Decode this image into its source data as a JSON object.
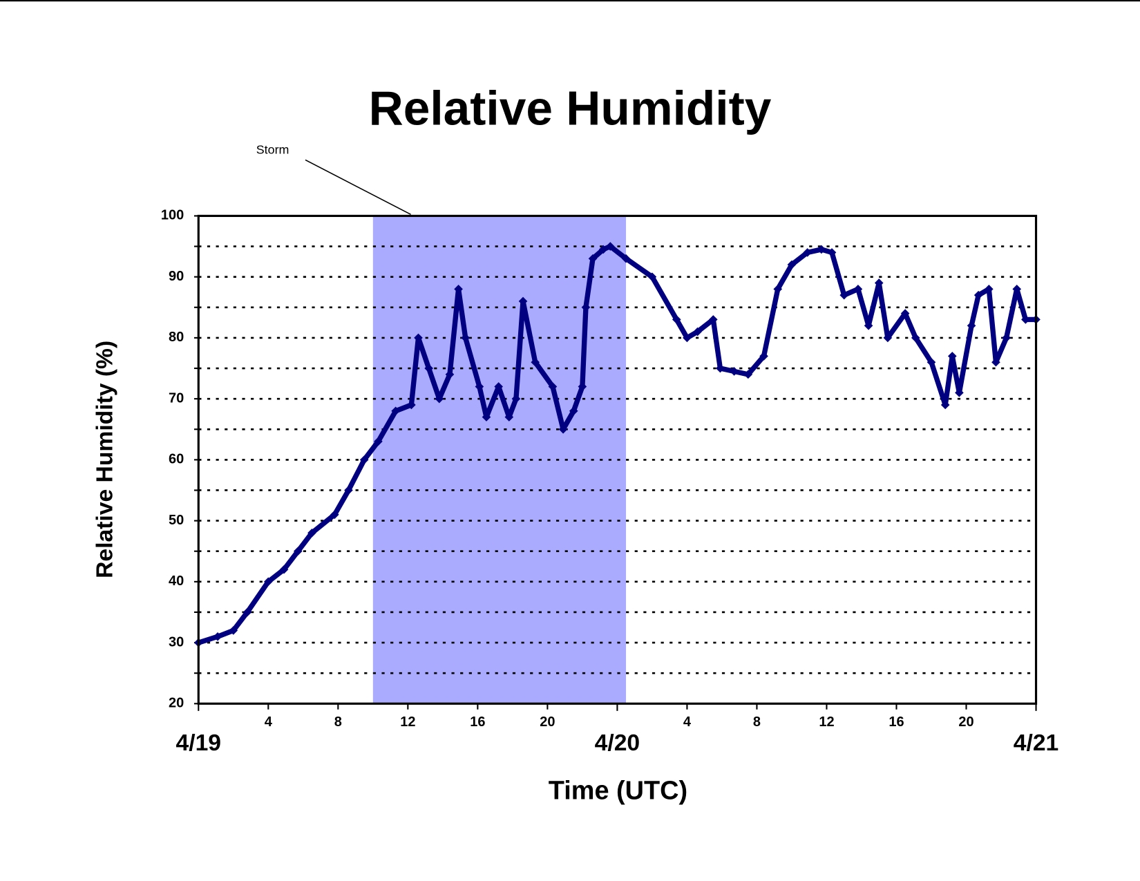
{
  "chart_data": {
    "type": "line",
    "title": "Relative Humidity",
    "x_label": "Time (UTC)",
    "y_label": "Relative Humidity (%)",
    "annotation": "Storm",
    "shaded_region": {
      "x": [
        10,
        24.5
      ],
      "color": "#aaaaff"
    },
    "xlim": [
      0,
      48
    ],
    "xticks": [
      4,
      8,
      12,
      16,
      20,
      {
        "value": 28,
        "label": "4"
      },
      {
        "value": 32,
        "label": "8"
      },
      {
        "value": 36,
        "label": "12"
      },
      {
        "value": 40,
        "label": "16"
      },
      {
        "value": 44,
        "label": "20"
      }
    ],
    "date_ticks": [
      {
        "value": 0,
        "label": "4/19"
      },
      {
        "value": 24,
        "label": "4/20"
      },
      {
        "value": 48,
        "label": "4/21"
      }
    ],
    "ylim": [
      20,
      100
    ],
    "yticks": [
      20,
      30,
      40,
      50,
      60,
      70,
      80,
      90,
      100
    ],
    "yminor_ticks": [
      25,
      35,
      45,
      55,
      65,
      75,
      85,
      95
    ],
    "grid": true,
    "marker": "diamond",
    "series": [
      {
        "name": "Relative Humidity",
        "color": "#000080",
        "x": [
          0,
          1.1,
          2,
          2.8,
          4,
          4.9,
          5.7,
          6.5,
          7.8,
          8.6,
          9.5,
          10.3,
          11.3,
          12.2,
          12.6,
          13.2,
          13.8,
          14.4,
          14.9,
          15.3,
          16.1,
          16.5,
          17.2,
          17.8,
          18.2,
          18.6,
          19.3,
          20.3,
          20.9,
          21.5,
          22,
          22.2,
          22.6,
          23.2,
          23.6,
          24.5,
          26,
          27.4,
          28,
          28.6,
          29.5,
          29.9,
          30.7,
          31.5,
          32.4,
          33.2,
          34,
          34.9,
          35.7,
          36.3,
          37,
          37.8,
          38.4,
          39,
          39.5,
          40.5,
          41.1,
          42,
          42.8,
          43.2,
          43.6,
          44.3,
          44.7,
          45.3,
          45.7,
          46.3,
          46.9,
          47.4,
          48
        ],
        "values": [
          30,
          31,
          32,
          35,
          40,
          42,
          45,
          48,
          51,
          55,
          60,
          63,
          68,
          69,
          80,
          75,
          70,
          74,
          88,
          80,
          72,
          67,
          72,
          67,
          70,
          86,
          76,
          72,
          65,
          68,
          72,
          85,
          93,
          94.5,
          95,
          93,
          90,
          83,
          80,
          81,
          83,
          75,
          74.5,
          74,
          77,
          88,
          92,
          94,
          94.5,
          94,
          87,
          88,
          82,
          89,
          80,
          84,
          80,
          76,
          69,
          77,
          71,
          82,
          87,
          88,
          76,
          80,
          88,
          83,
          83
        ]
      }
    ]
  }
}
